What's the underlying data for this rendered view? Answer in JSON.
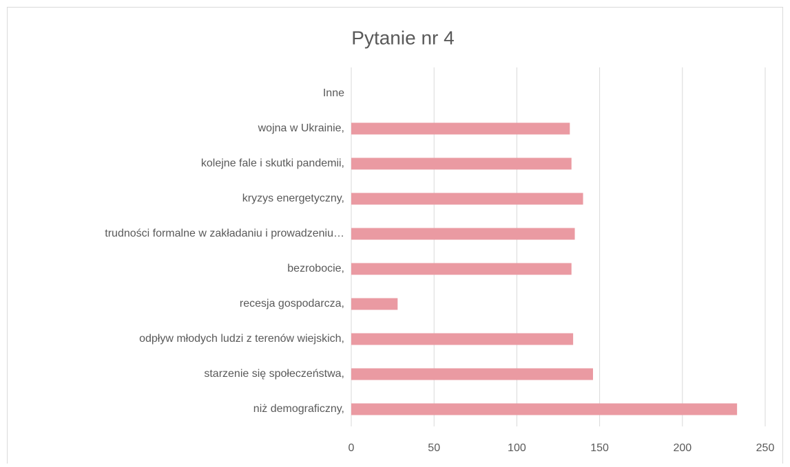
{
  "chart_data": {
    "type": "bar",
    "orientation": "horizontal",
    "title": "Pytanie nr 4",
    "categories": [
      "Inne",
      "wojna w Ukrainie,",
      "kolejne fale i skutki pandemii,",
      "kryzys energetyczny,",
      "trudności formalne w zakładaniu i prowadzeniu…",
      "bezrobocie,",
      "recesja gospodarcza,",
      "odpływ młodych ludzi z terenów wiejskich,",
      "starzenie się społeczeństwa,",
      "niż demograficzny,"
    ],
    "values": [
      0,
      132,
      133,
      140,
      135,
      133,
      28,
      134,
      146,
      233
    ],
    "color": "#ea9aa2",
    "xlim": [
      0,
      250
    ],
    "xticks": [
      0,
      50,
      100,
      150,
      200,
      250
    ],
    "grid": true
  }
}
